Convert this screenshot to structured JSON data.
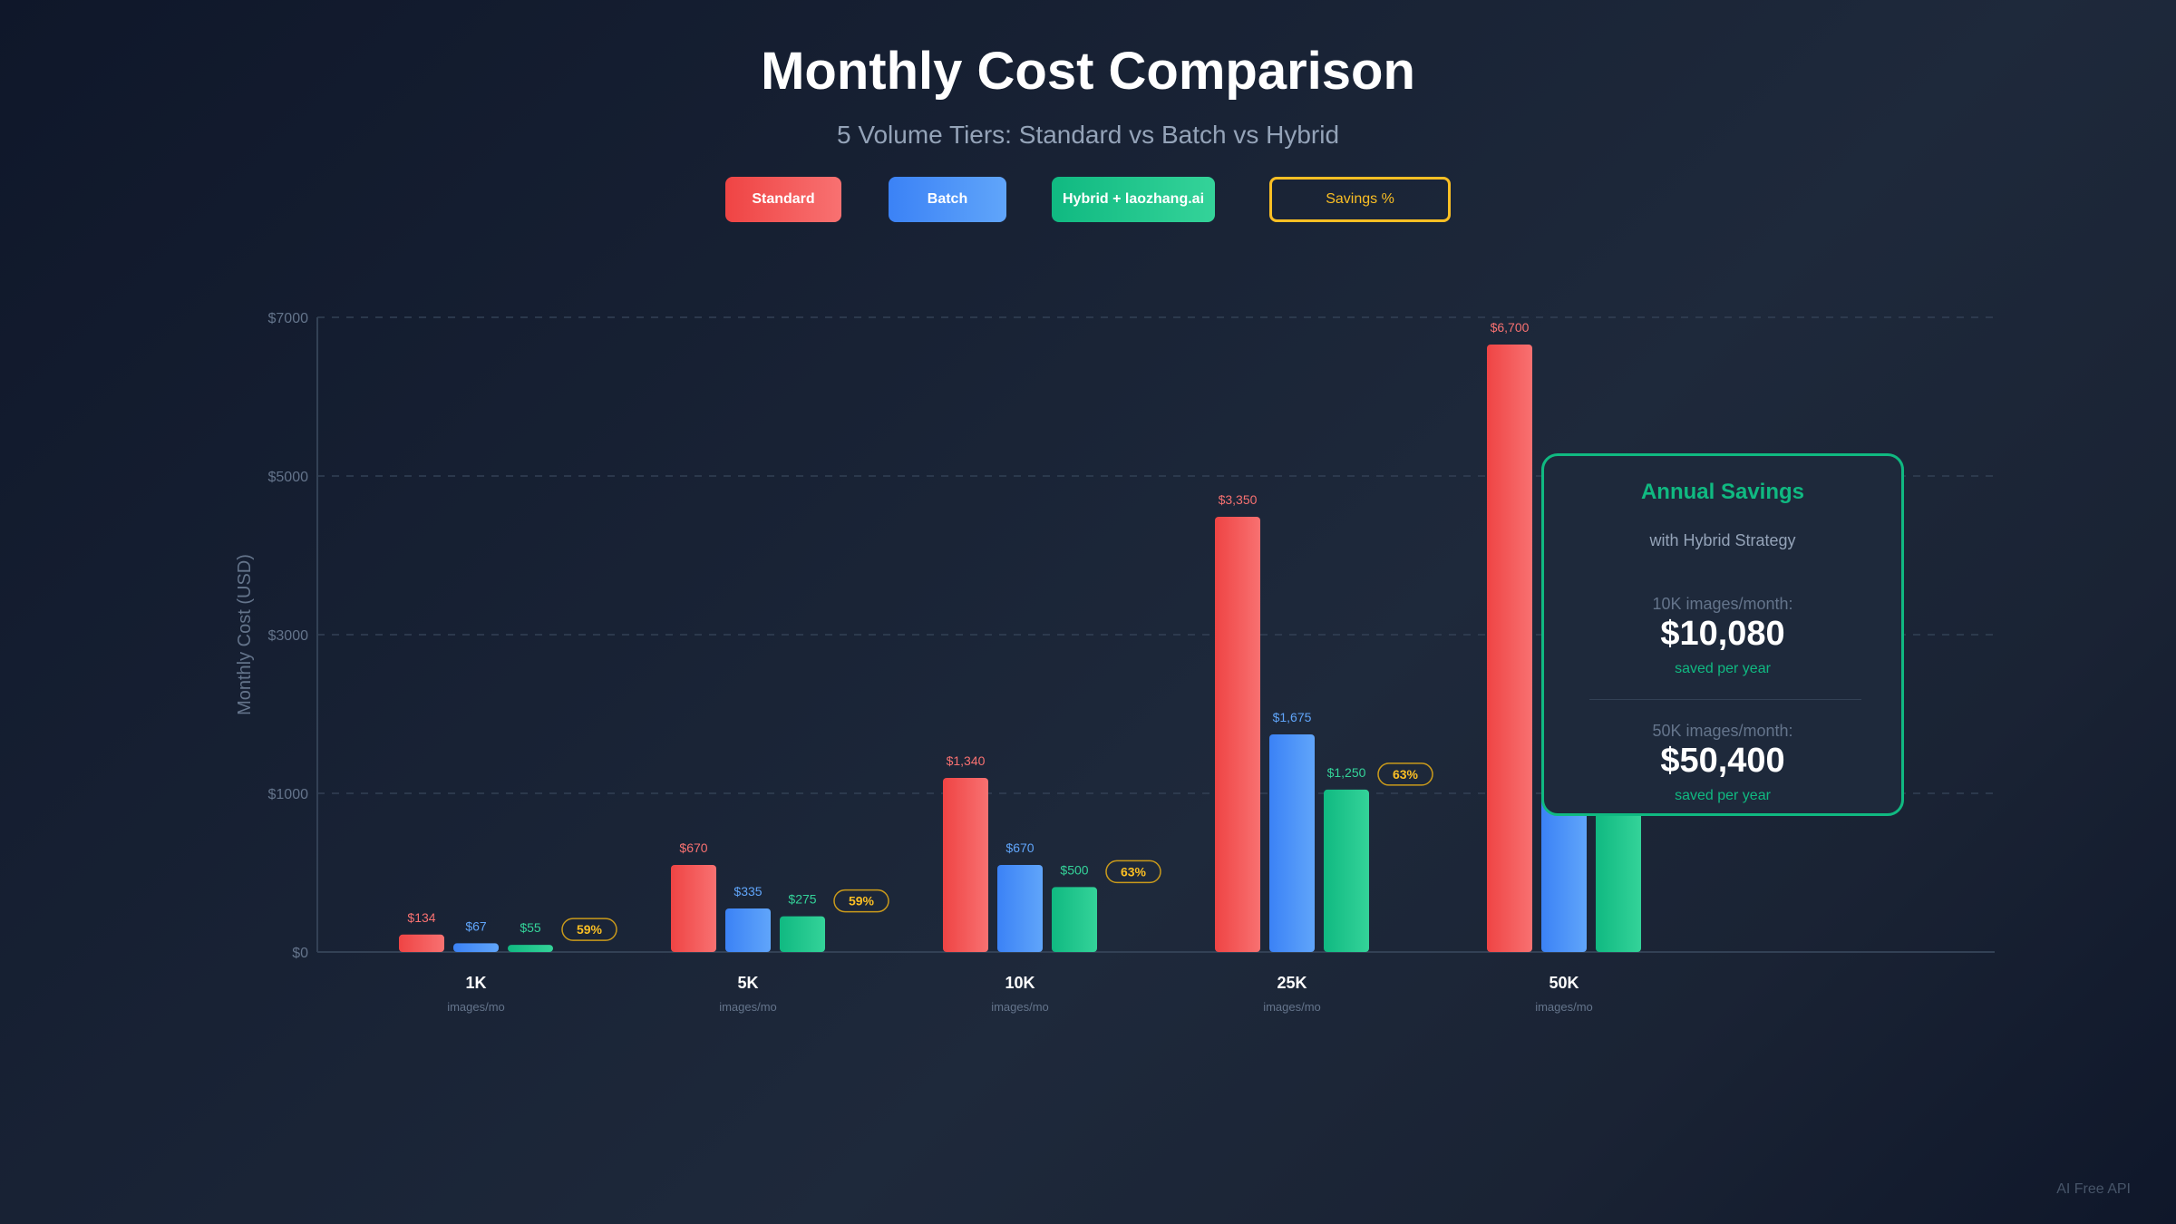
{
  "title": "Monthly Cost Comparison",
  "subtitle": "5 Volume Tiers: Standard vs Batch vs Hybrid",
  "legend": [
    {
      "label": "Standard",
      "color": "#ef4444"
    },
    {
      "label": "Batch",
      "color": "#3b82f6"
    },
    {
      "label": "Hybrid + laozhang.ai",
      "color": "#10b981"
    },
    {
      "label": "Savings %",
      "color": "#fbbf24"
    }
  ],
  "chart_data": {
    "type": "bar",
    "ylabel": "Monthly Cost (USD)",
    "yticks": [
      "$0",
      "$1000",
      "$3000",
      "$5000",
      "$7000"
    ],
    "categories": [
      "1K",
      "5K",
      "10K",
      "25K",
      "50K"
    ],
    "category_sublabel": "images/mo",
    "series": [
      {
        "name": "Standard",
        "color": "#ef4444",
        "values": [
          134,
          670,
          1340,
          3350,
          6700
        ],
        "labels": [
          "$134",
          "$670",
          "$1,340",
          "$3,350",
          "$6,700"
        ]
      },
      {
        "name": "Batch",
        "color": "#3b82f6",
        "values": [
          67,
          335,
          670,
          1675,
          3350
        ],
        "labels": [
          "$67",
          "$335",
          "$670",
          "$1,675",
          ""
        ]
      },
      {
        "name": "Hybrid + laozhang.ai",
        "color": "#10b981",
        "values": [
          55,
          275,
          500,
          1250,
          2500
        ],
        "labels": [
          "$55",
          "$275",
          "$500",
          "$1,250",
          ""
        ]
      }
    ],
    "savings": [
      "59%",
      "59%",
      "63%",
      "63%",
      ""
    ],
    "grid": true
  },
  "card": {
    "title": "Annual Savings",
    "subtitle": "with Hybrid Strategy",
    "items": [
      {
        "label": "10K images/month:",
        "value": "$10,080",
        "note": "saved per year"
      },
      {
        "label": "50K images/month:",
        "value": "$50,400",
        "note": "saved per year"
      }
    ]
  },
  "watermark": "AI Free API"
}
